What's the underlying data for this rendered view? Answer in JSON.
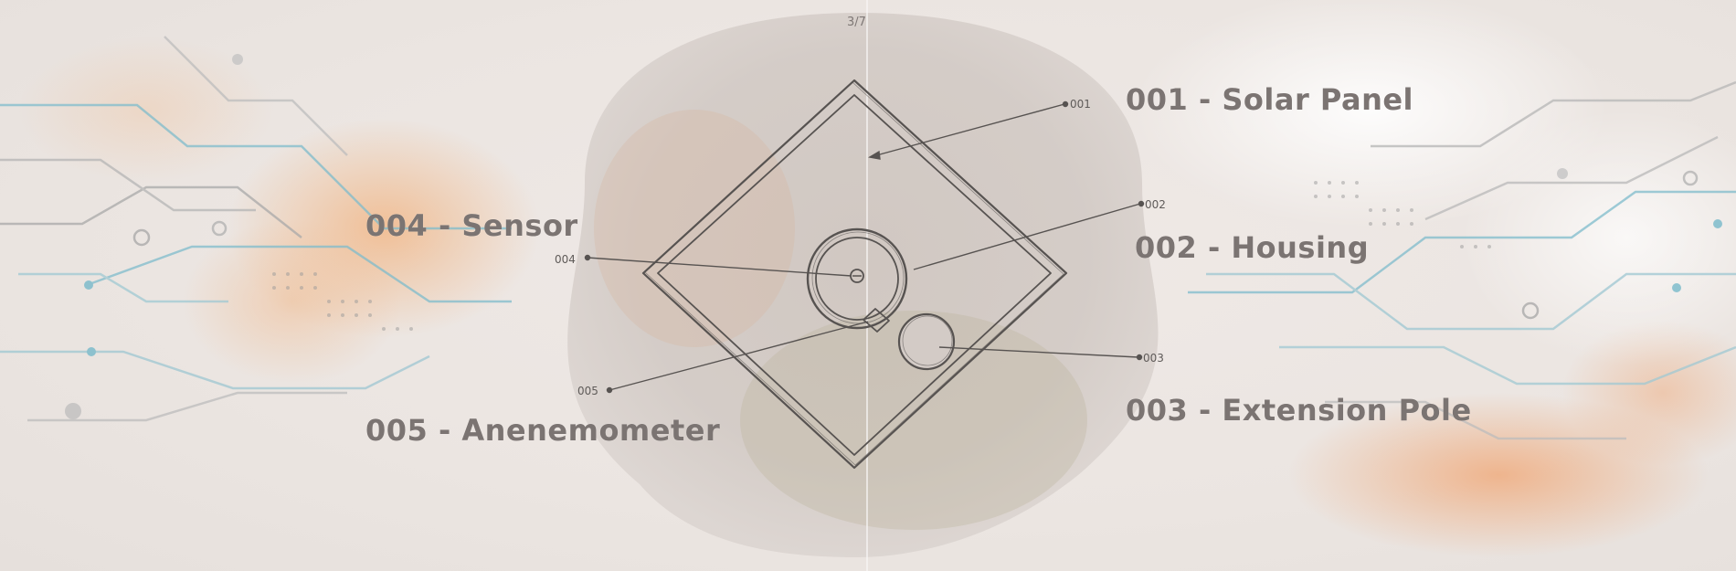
{
  "slide": {
    "page_indicator": "3/7"
  },
  "diagram": {
    "callout_numbers": [
      "001",
      "002",
      "003",
      "004",
      "005"
    ],
    "titles": [
      "001 - Solar Panel",
      "002 - Housing",
      "003 - Extension Pole",
      "004 - Sensor",
      "005 - Anenemometer"
    ]
  },
  "colors": {
    "label_gray": "#7b7472",
    "circuit_teal": "#6fb6c8",
    "sketch_line": "#5a5654",
    "fire_orange": "#e8a36a"
  }
}
